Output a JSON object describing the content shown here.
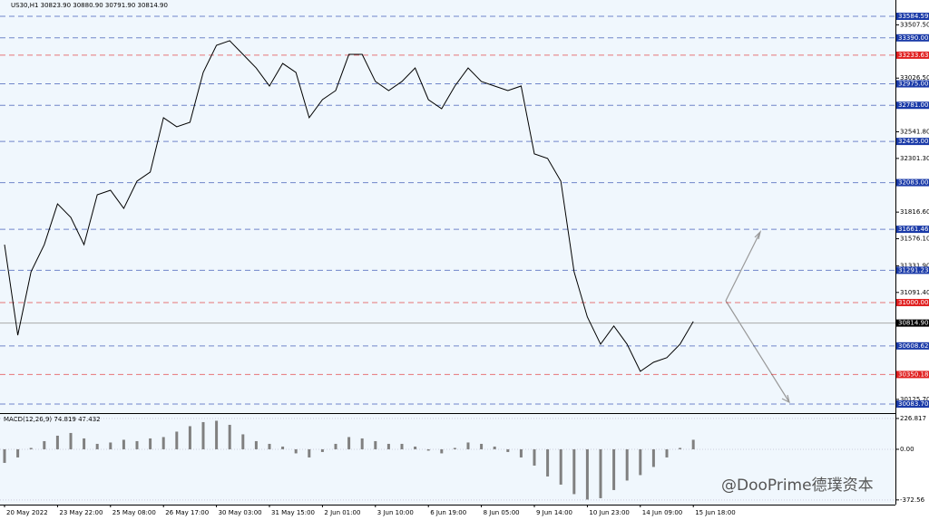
{
  "chart_data": [
    {
      "type": "line",
      "title": "US30,H1  30823.90 30880.90 30791.90 30814.90",
      "color": "#000000",
      "values": [
        31523,
        30705,
        31278,
        31523,
        31891,
        31769,
        31523,
        31973,
        32014,
        31850,
        32096,
        32178,
        32669,
        32587,
        32628,
        33078,
        33323,
        33364,
        33241,
        33118,
        32955,
        33159,
        33078,
        32669,
        32832,
        32914,
        33241,
        33241,
        32996,
        32914,
        32996,
        33118,
        32832,
        32750,
        32955,
        33118,
        32996,
        32955,
        32914,
        32955,
        32342,
        32301,
        32096,
        31278,
        30870,
        30624,
        30788,
        30624,
        30379,
        30461,
        30502,
        30624,
        30829
      ],
      "x_labels": [
        "20 May 2022",
        "23 May 22:00",
        "25 May 08:00",
        "26 May 17:00",
        "30 May 03:00",
        "31 May 15:00",
        "2 Jun 01:00",
        "3 Jun 10:00",
        "6 Jun 19:00",
        "8 Jun 05:00",
        "9 Jun 14:00",
        "10 Jun 23:00",
        "14 Jun 09:00",
        "15 Jun 18:00"
      ],
      "ylim": [
        30010,
        33650
      ],
      "yticks": [
        {
          "value": 33507.5,
          "label": "33507.50"
        },
        {
          "value": 33026.5,
          "label": "33026.50"
        },
        {
          "value": 32541.8,
          "label": "32541.80"
        },
        {
          "value": 32301.3,
          "label": "32301.30"
        },
        {
          "value": 31816.6,
          "label": "31816.60"
        },
        {
          "value": 31576.1,
          "label": "31576.10"
        },
        {
          "value": 31331.9,
          "label": "31331.90"
        },
        {
          "value": 31091.4,
          "label": "31091.40"
        },
        {
          "value": 30125.7,
          "label": "30125.70"
        }
      ],
      "levels": [
        {
          "value": 33584.59,
          "color": "#1a3aa8"
        },
        {
          "value": 33390,
          "label": "33390.00",
          "color": "#1a3aa8"
        },
        {
          "value": 33233.63,
          "color": "#e02020"
        },
        {
          "value": 32975,
          "label": "32975.00",
          "color": "#1a3aa8"
        },
        {
          "value": 32781,
          "label": "32781.00",
          "color": "#1a3aa8"
        },
        {
          "value": 32455,
          "label": "32455.00",
          "color": "#1a3aa8"
        },
        {
          "value": 32083,
          "label": "32083.00",
          "color": "#1a3aa8"
        },
        {
          "value": 31661.46,
          "color": "#1a3aa8"
        },
        {
          "value": 31291.23,
          "color": "#1a3aa8"
        },
        {
          "value": 31000,
          "label": "31000.00",
          "color": "#e02020"
        },
        {
          "value": 30608.62,
          "color": "#1a3aa8"
        },
        {
          "value": 30350.18,
          "color": "#e02020"
        },
        {
          "value": 30083.7,
          "label": "30083.70",
          "color": "#1a3aa8"
        }
      ],
      "last_price": {
        "value": 30814.9,
        "label": "30814.90",
        "color": "#000000"
      }
    },
    {
      "type": "bar",
      "title": "MACD(12,26,9) 74.819 47.432",
      "color": "#808080",
      "values": [
        -100,
        -60,
        10,
        60,
        100,
        120,
        80,
        40,
        50,
        70,
        60,
        80,
        90,
        130,
        170,
        200,
        210,
        180,
        110,
        60,
        40,
        20,
        -30,
        -60,
        -20,
        40,
        90,
        80,
        60,
        40,
        40,
        20,
        -10,
        -30,
        10,
        50,
        40,
        20,
        -20,
        -60,
        -120,
        -200,
        -260,
        -330,
        -370,
        -360,
        -300,
        -230,
        -190,
        -130,
        -60,
        10,
        70
      ],
      "ylim": [
        -407,
        253
      ],
      "yticks": [
        226.817,
        {
          "value": 0,
          "label": "0.00"
        },
        -372.56
      ]
    }
  ],
  "watermark": "@DooPrime德璞资本"
}
